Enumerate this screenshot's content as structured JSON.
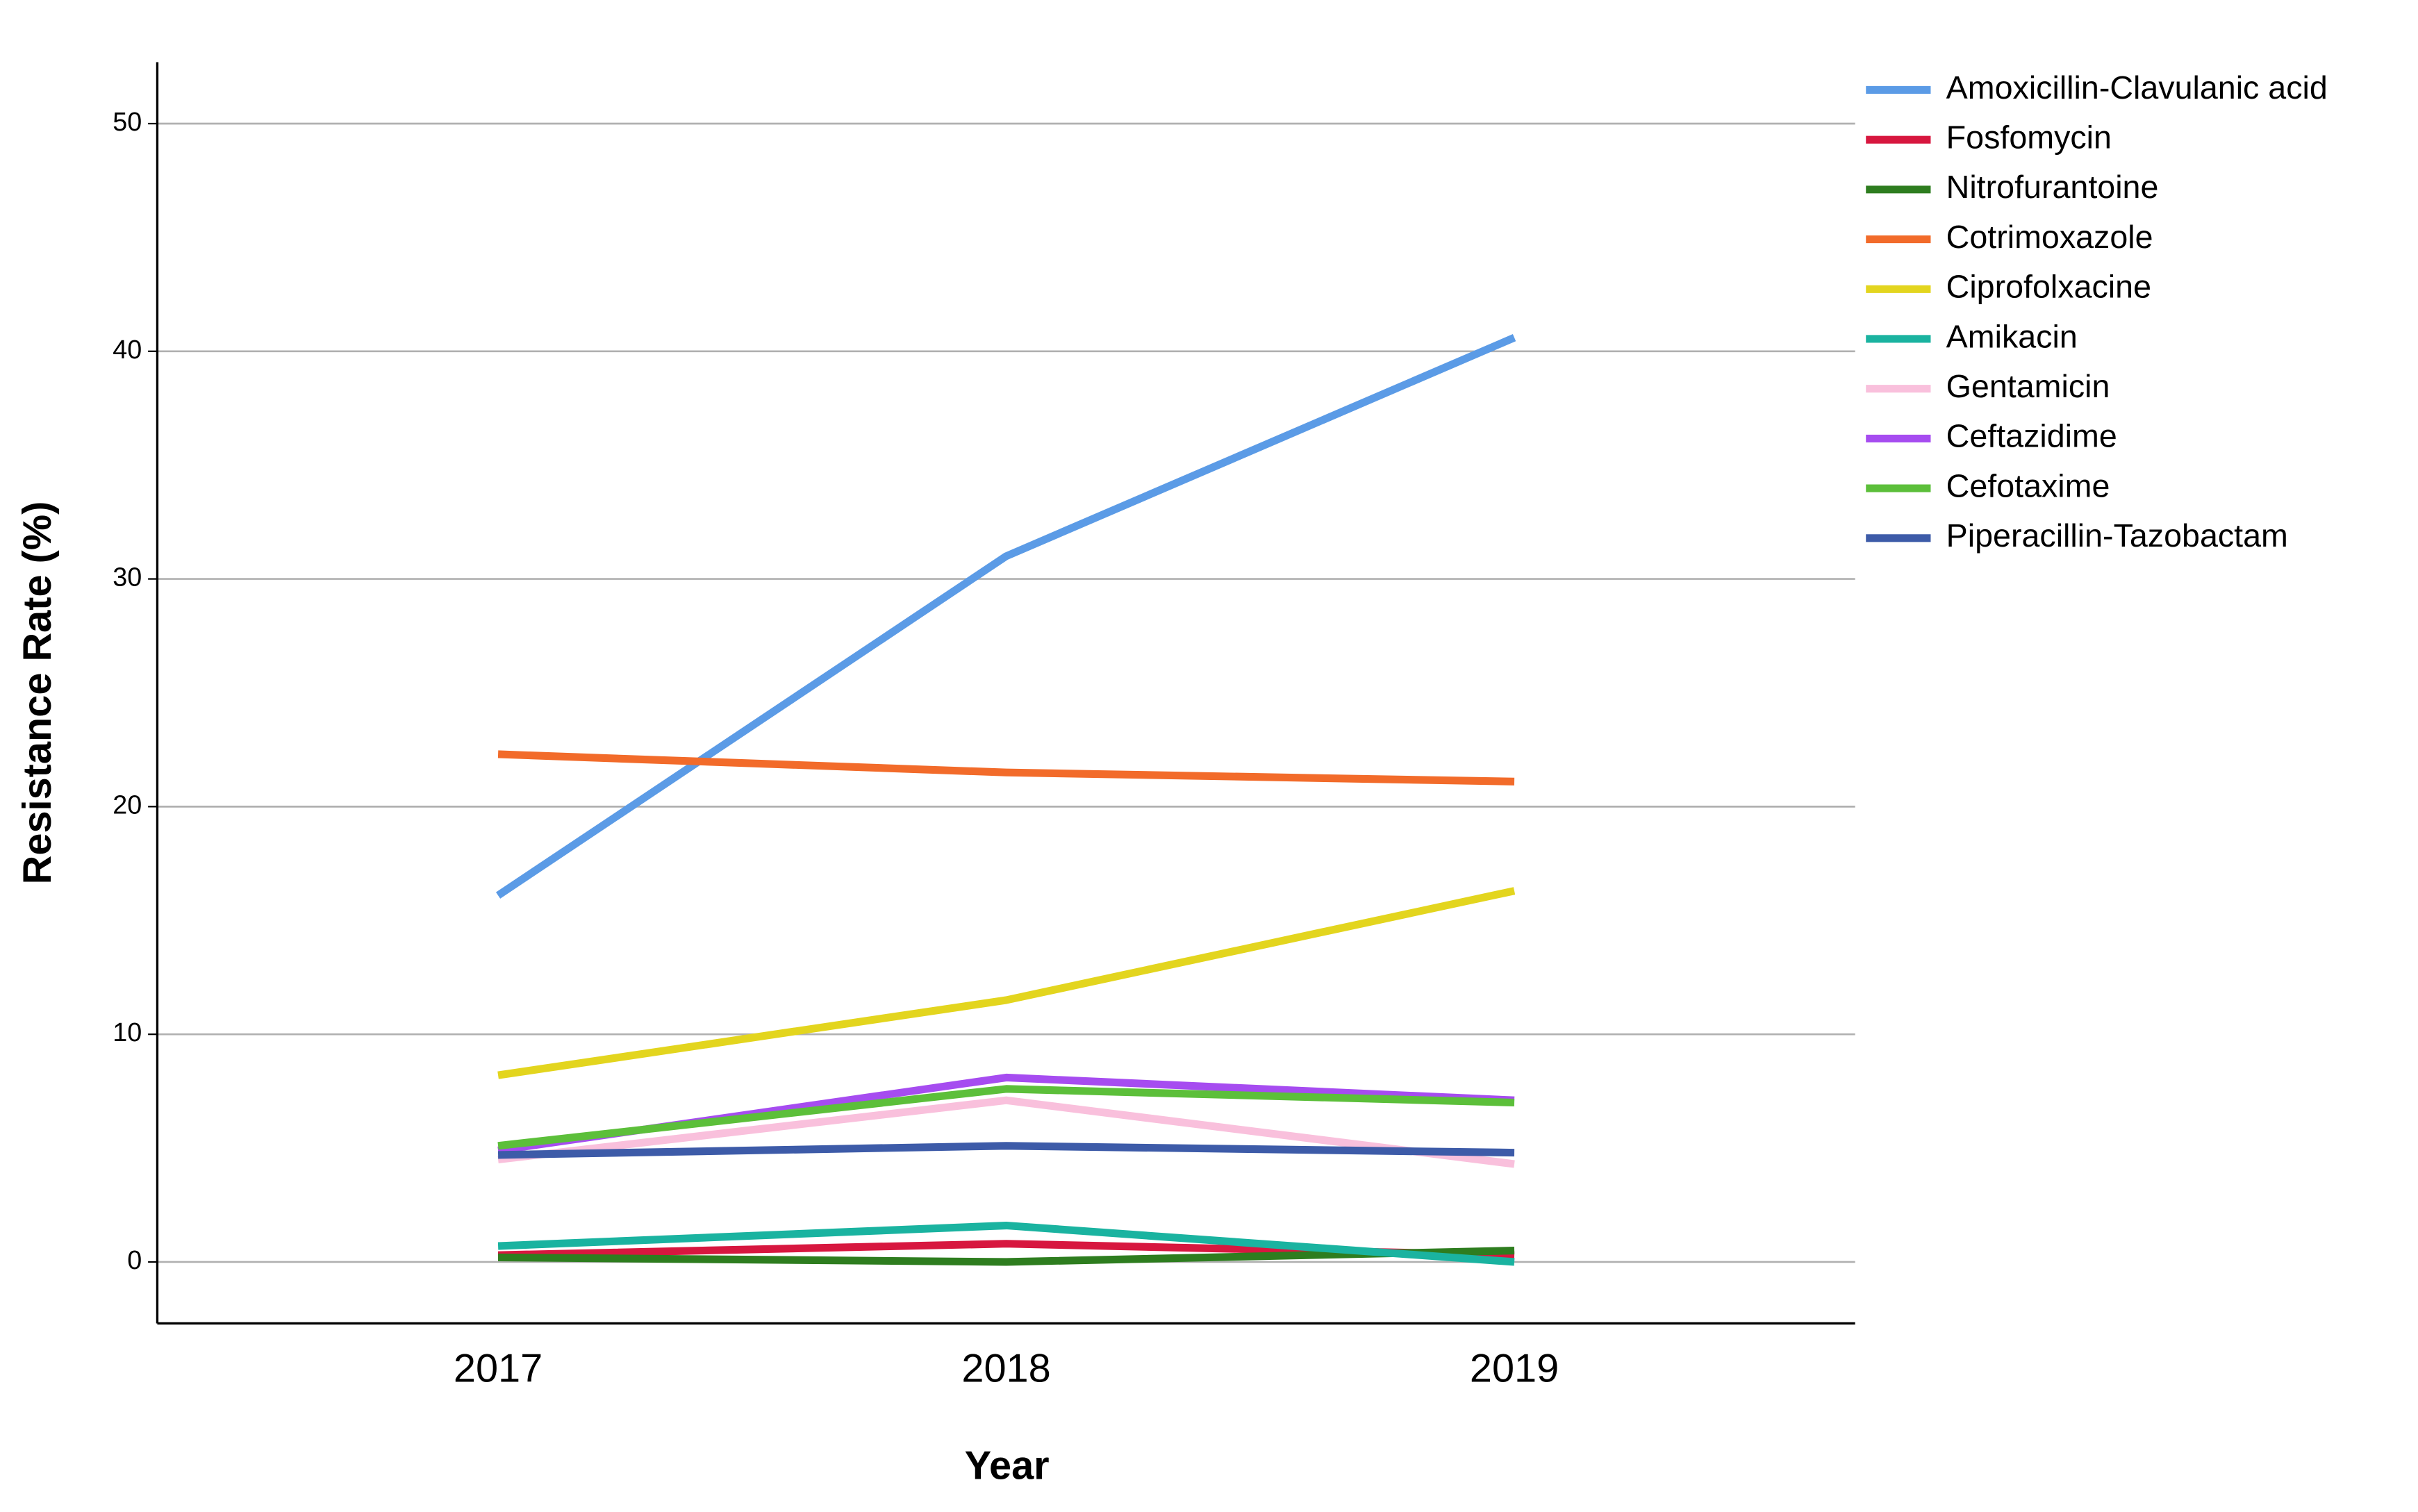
{
  "chart_data": {
    "type": "line",
    "x_label": "Year",
    "y_label": "Resistance Rate (%)",
    "categories": [
      "2017",
      "2018",
      "2019"
    ],
    "ylim": [
      -2.7,
      52.7
    ],
    "yticks": [
      0,
      10,
      20,
      30,
      40,
      50
    ],
    "grid": true,
    "legend": "right",
    "series": [
      {
        "name": "Amoxicillin-Clavulanic acid",
        "color": "#5b9be6",
        "values": [
          16.1,
          31.0,
          40.6
        ]
      },
      {
        "name": "Fosfomycin",
        "color": "#d7173f",
        "values": [
          0.3,
          0.8,
          0.3
        ]
      },
      {
        "name": "Nitrofurantoine",
        "color": "#2e7d1f",
        "values": [
          0.2,
          0.0,
          0.5
        ]
      },
      {
        "name": "Cotrimoxazole",
        "color": "#f26b2a",
        "values": [
          22.3,
          21.5,
          21.1
        ]
      },
      {
        "name": "Ciprofolxacine",
        "color": "#e3d51e",
        "values": [
          8.2,
          11.5,
          16.3
        ]
      },
      {
        "name": "Amikacin",
        "color": "#1ab3a0",
        "values": [
          0.7,
          1.6,
          0.0
        ]
      },
      {
        "name": "Gentamicin",
        "color": "#f9c0dc",
        "values": [
          4.5,
          7.1,
          4.3
        ]
      },
      {
        "name": "Ceftazidime",
        "color": "#a64cf0",
        "values": [
          4.9,
          8.1,
          7.1
        ]
      },
      {
        "name": "Cefotaxime",
        "color": "#5cbf3a",
        "values": [
          5.1,
          7.6,
          7.0
        ]
      },
      {
        "name": "Piperacillin-Tazobactam",
        "color": "#3d5ba8",
        "values": [
          4.7,
          5.1,
          4.8
        ]
      }
    ]
  }
}
